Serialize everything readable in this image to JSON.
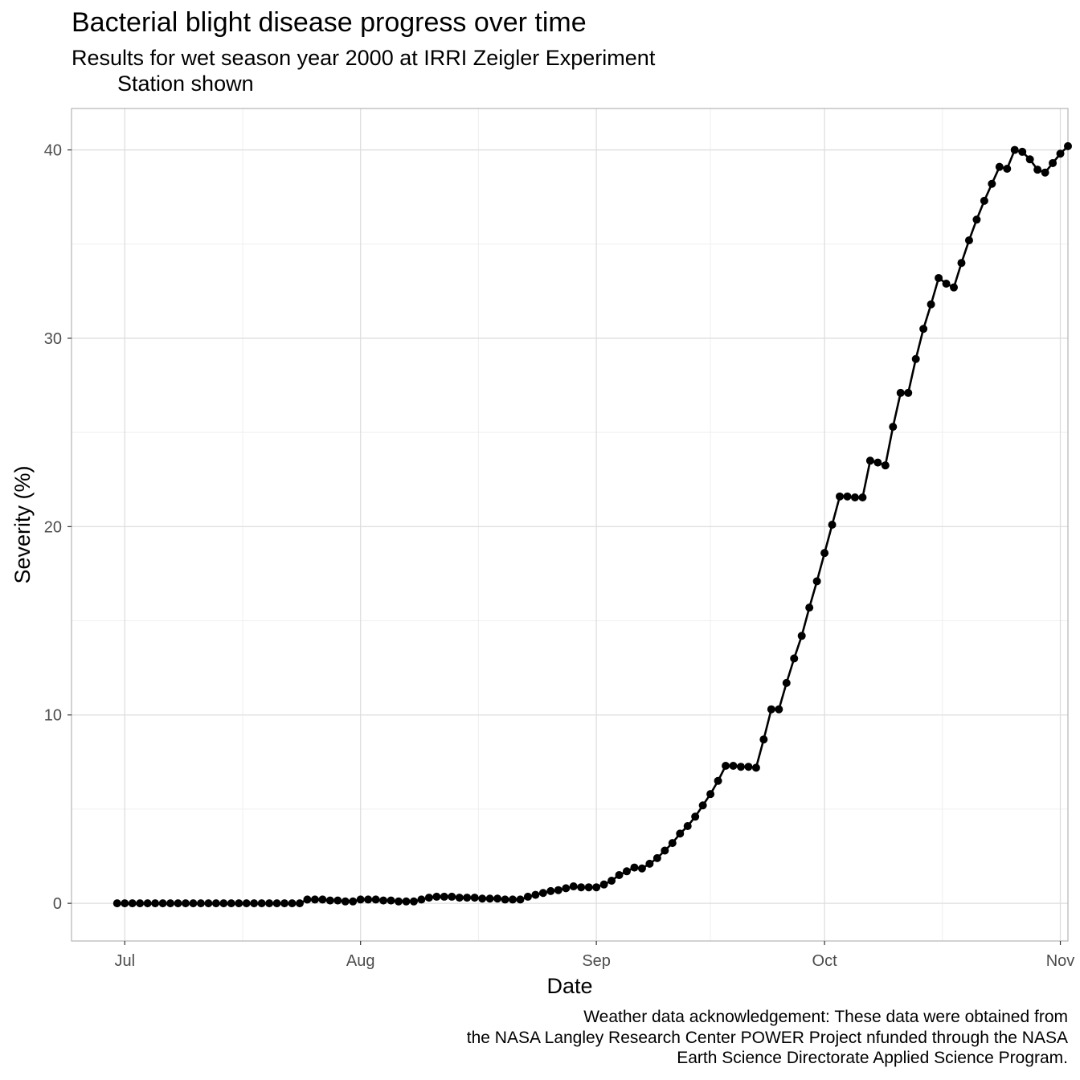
{
  "chart_data": {
    "type": "line",
    "title": "Bacterial blight disease progress over time",
    "subtitle_line1": "Results for wet season year 2000 at IRRI Zeigler Experiment",
    "subtitle_line2": "Station shown",
    "xlabel": "Date",
    "ylabel": "Severity (%)",
    "caption": [
      "Weather data acknowledgement: These data were obtained from",
      "the NASA Langley Research Center POWER Project nfunded through the NASA",
      "Earth Science Directorate Applied Science Program."
    ],
    "x_start_date": "2000-06-30",
    "x_ticks": [
      {
        "date": "2000-07-01",
        "label": "Jul"
      },
      {
        "date": "2000-08-01",
        "label": "Aug"
      },
      {
        "date": "2000-09-01",
        "label": "Sep"
      },
      {
        "date": "2000-10-01",
        "label": "Oct"
      },
      {
        "date": "2000-11-01",
        "label": "Nov"
      }
    ],
    "xlim": [
      "2000-06-24",
      "2000-11-02"
    ],
    "y_ticks": [
      0,
      10,
      20,
      30,
      40
    ],
    "ylim": [
      -2,
      42.2
    ],
    "grid": true,
    "legend": "none",
    "series": [
      {
        "color": "#000000",
        "values": [
          0,
          0,
          0,
          0,
          0,
          0,
          0,
          0,
          0,
          0,
          0,
          0,
          0,
          0,
          0,
          0,
          0,
          0,
          0,
          0,
          0,
          0,
          0,
          0,
          0,
          0.2,
          0.2,
          0.2,
          0.15,
          0.15,
          0.1,
          0.1,
          0.2,
          0.2,
          0.2,
          0.15,
          0.15,
          0.1,
          0.1,
          0.1,
          0.2,
          0.3,
          0.35,
          0.35,
          0.35,
          0.3,
          0.3,
          0.3,
          0.25,
          0.25,
          0.25,
          0.2,
          0.2,
          0.2,
          0.35,
          0.45,
          0.55,
          0.65,
          0.7,
          0.8,
          0.9,
          0.85,
          0.85,
          0.85,
          1.0,
          1.2,
          1.5,
          1.7,
          1.9,
          1.85,
          2.1,
          2.4,
          2.8,
          3.2,
          3.7,
          4.1,
          4.6,
          5.2,
          5.8,
          6.5,
          7.3,
          7.3,
          7.25,
          7.25,
          7.2,
          8.7,
          10.3,
          10.3,
          11.7,
          13.0,
          14.2,
          15.7,
          17.1,
          18.6,
          20.1,
          21.6,
          21.6,
          21.55,
          21.55,
          23.5,
          23.4,
          23.25,
          25.3,
          27.1,
          27.1,
          28.9,
          30.5,
          31.8,
          33.2,
          32.9,
          32.7,
          34.0,
          35.2,
          36.3,
          37.3,
          38.2,
          39.1,
          39.0,
          40.0,
          39.9,
          39.5,
          38.95,
          38.8,
          39.3,
          39.8,
          40.2
        ]
      }
    ]
  }
}
